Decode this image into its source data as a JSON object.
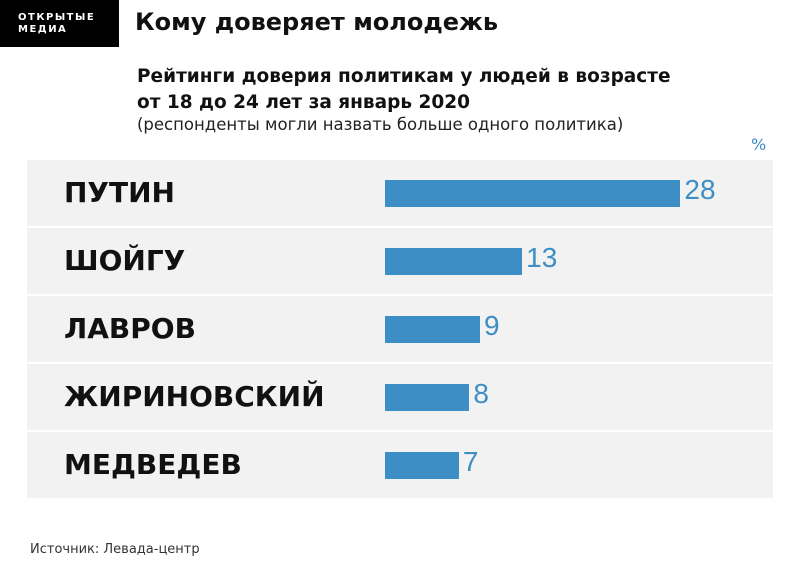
{
  "logo": {
    "line1": "ОТКРЫТЫЕ",
    "line2": "МЕДИА"
  },
  "title": "Кому доверяет молодежь",
  "subtitle_line1": "Рейтинги доверия политикам у людей в возрасте",
  "subtitle_line2": "от 18 до 24 лет за январь 2020",
  "note": "(респонденты могли назвать больше одного политика)",
  "source": "Источник: Левада-центр",
  "chart_data": {
    "type": "bar",
    "orientation": "horizontal",
    "unit": "%",
    "categories": [
      "ПУТИН",
      "ШОЙГУ",
      "ЛАВРОВ",
      "ЖИРИНОВСКИЙ",
      "МЕДВЕДЕВ"
    ],
    "values": [
      28,
      13,
      9,
      8,
      7
    ],
    "bar_color": "#3d8ec5"
  }
}
